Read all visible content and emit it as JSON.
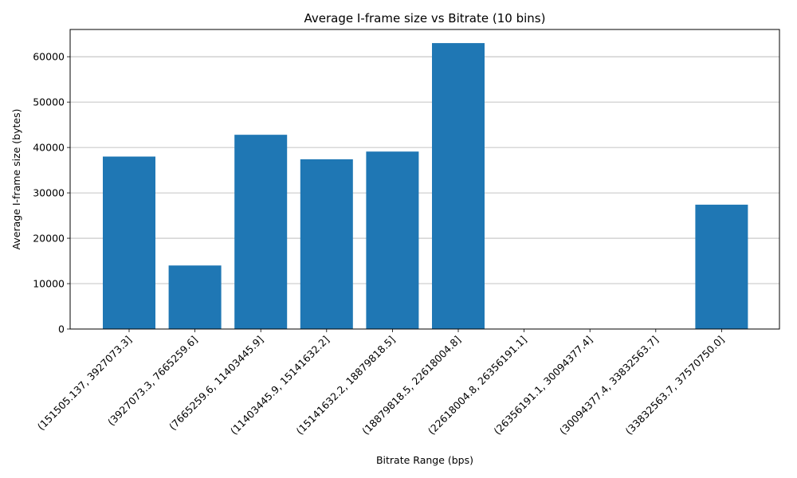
{
  "chart_data": {
    "type": "bar",
    "title": "Average I-frame size vs Bitrate (10 bins)",
    "xlabel": "Bitrate Range (bps)",
    "ylabel": "Average I-frame size (bytes)",
    "categories": [
      "(151505.137, 3927073.3]",
      "(3927073.3, 7665259.6]",
      "(7665259.6, 11403445.9]",
      "(11403445.9, 15141632.2]",
      "(15141632.2, 18879818.5]",
      "(18879818.5, 22618004.8]",
      "(22618004.8, 26356191.1]",
      "(26356191.1, 30094377.4]",
      "(30094377.4, 33832563.7]",
      "(33832563.7, 37570750.0]"
    ],
    "values": [
      38000,
      14000,
      42800,
      37400,
      39100,
      63000,
      0,
      0,
      0,
      27400
    ],
    "ylim": [
      0,
      66000
    ],
    "yticks": [
      0,
      10000,
      20000,
      30000,
      40000,
      50000,
      60000
    ],
    "grid": "y",
    "bar_color": "#1f77b4"
  }
}
